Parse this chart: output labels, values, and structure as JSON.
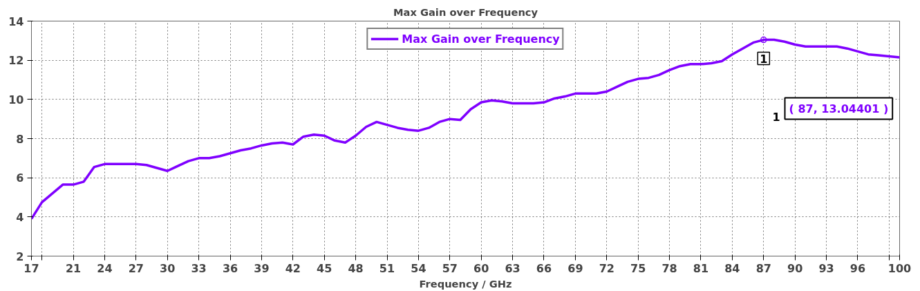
{
  "chart_data": {
    "type": "line",
    "title": "Max Gain over Frequency",
    "xlabel": "Frequency / GHz",
    "x": [
      17,
      18,
      19,
      20,
      21,
      22,
      23,
      24,
      25,
      26,
      27,
      28,
      29,
      30,
      31,
      32,
      33,
      34,
      35,
      36,
      37,
      38,
      39,
      40,
      41,
      42,
      43,
      44,
      45,
      46,
      47,
      48,
      49,
      50,
      51,
      52,
      53,
      54,
      55,
      56,
      57,
      58,
      59,
      60,
      61,
      62,
      63,
      64,
      65,
      66,
      67,
      68,
      69,
      70,
      71,
      72,
      73,
      74,
      75,
      76,
      77,
      78,
      79,
      80,
      81,
      82,
      83,
      84,
      85,
      86,
      87,
      88,
      89,
      90,
      91,
      92,
      93,
      94,
      95,
      96,
      97,
      98,
      99,
      100
    ],
    "series": [
      {
        "name": "Max Gain over Frequency",
        "color": "#7f00ff",
        "values": [
          3.9,
          4.75,
          5.2,
          5.65,
          5.65,
          5.8,
          6.55,
          6.7,
          6.7,
          6.7,
          6.7,
          6.65,
          6.5,
          6.35,
          6.6,
          6.85,
          7.0,
          7.0,
          7.1,
          7.25,
          7.4,
          7.5,
          7.65,
          7.75,
          7.8,
          7.7,
          8.1,
          8.2,
          8.15,
          7.9,
          7.8,
          8.15,
          8.6,
          8.85,
          8.7,
          8.55,
          8.45,
          8.4,
          8.55,
          8.85,
          9.0,
          8.95,
          9.5,
          9.85,
          9.95,
          9.9,
          9.8,
          9.8,
          9.8,
          9.85,
          10.05,
          10.15,
          10.3,
          10.3,
          10.3,
          10.4,
          10.65,
          10.9,
          11.05,
          11.1,
          11.25,
          11.5,
          11.7,
          11.8,
          11.8,
          11.85,
          11.95,
          12.3,
          12.6,
          12.9,
          13.04401,
          13.05,
          12.95,
          12.8,
          12.7,
          12.7,
          12.7,
          12.7,
          12.6,
          12.45,
          12.3,
          12.25,
          12.2,
          12.15
        ]
      }
    ],
    "xlim": [
      17,
      100
    ],
    "xticks": [
      17,
      {
        "value": 18,
        "label": null
      },
      21,
      24,
      27,
      30,
      33,
      36,
      39,
      42,
      45,
      48,
      51,
      54,
      57,
      60,
      63,
      66,
      69,
      72,
      75,
      78,
      81,
      84,
      87,
      90,
      93,
      96,
      {
        "value": 99,
        "label": null
      },
      100
    ],
    "ylim": [
      2,
      14
    ],
    "yticks": [
      2,
      4,
      6,
      8,
      10,
      12,
      14
    ],
    "annotations": [
      {
        "text": "1",
        "x": 87,
        "y": 13.04401
      },
      "( 87, 13.04401 )"
    ],
    "grid": true,
    "legend": "top",
    "marker": "none",
    "line_style": "solid"
  }
}
